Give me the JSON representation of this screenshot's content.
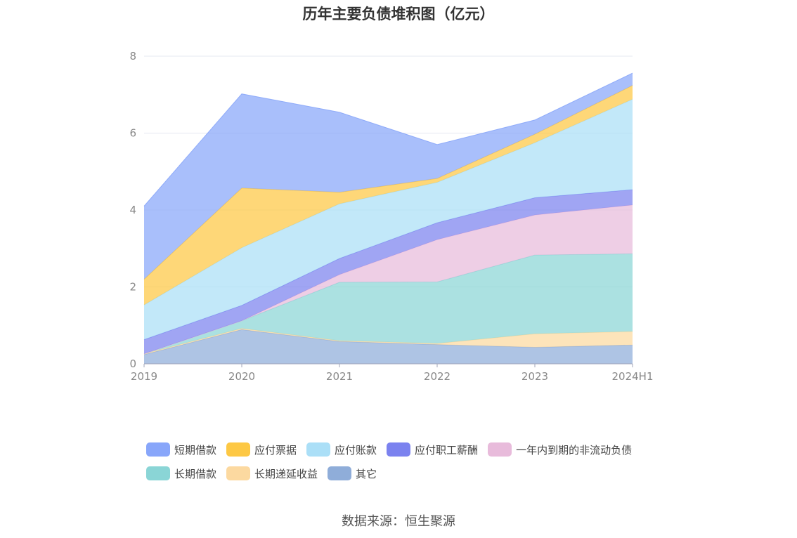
{
  "chart_data": {
    "type": "area",
    "stacked": true,
    "title": "历年主要负债堆积图（亿元）",
    "categories": [
      "2019",
      "2020",
      "2021",
      "2022",
      "2023",
      "2024H1"
    ],
    "ylim": [
      0,
      8
    ],
    "yticks": [
      0,
      2,
      4,
      6,
      8
    ],
    "grid": true,
    "legend_position": "bottom",
    "series": [
      {
        "name": "其它",
        "color": "#8fadd9",
        "values": [
          0.24,
          0.89,
          0.58,
          0.5,
          0.43,
          0.49
        ]
      },
      {
        "name": "长期递延收益",
        "color": "#fcd9a0",
        "values": [
          0.02,
          0.03,
          0.02,
          0.03,
          0.35,
          0.35
        ]
      },
      {
        "name": "长期借款",
        "color": "#8ad5d6",
        "values": [
          0.0,
          0.2,
          1.52,
          1.6,
          2.05,
          2.02
        ]
      },
      {
        "name": "一年内到期的非流动负债",
        "color": "#e8bbdb",
        "values": [
          0.0,
          0.0,
          0.2,
          1.1,
          1.04,
          1.27
        ]
      },
      {
        "name": "应付职工薪酬",
        "color": "#7b82ef",
        "values": [
          0.37,
          0.4,
          0.42,
          0.44,
          0.45,
          0.4
        ]
      },
      {
        "name": "应付账款",
        "color": "#abdff7",
        "values": [
          0.9,
          1.5,
          1.42,
          1.05,
          1.43,
          2.35
        ]
      },
      {
        "name": "应付票据",
        "color": "#fdc844",
        "values": [
          0.67,
          1.55,
          0.3,
          0.1,
          0.22,
          0.36
        ]
      },
      {
        "name": "短期借款",
        "color": "#88a6fa",
        "values": [
          1.9,
          2.45,
          2.08,
          0.88,
          0.37,
          0.32
        ]
      }
    ],
    "legend_order": [
      "短期借款",
      "应付票据",
      "应付账款",
      "应付职工薪酬",
      "一年内到期的非流动负债",
      "长期借款",
      "长期递延收益",
      "其它"
    ]
  },
  "source": "数据来源：恒生聚源"
}
